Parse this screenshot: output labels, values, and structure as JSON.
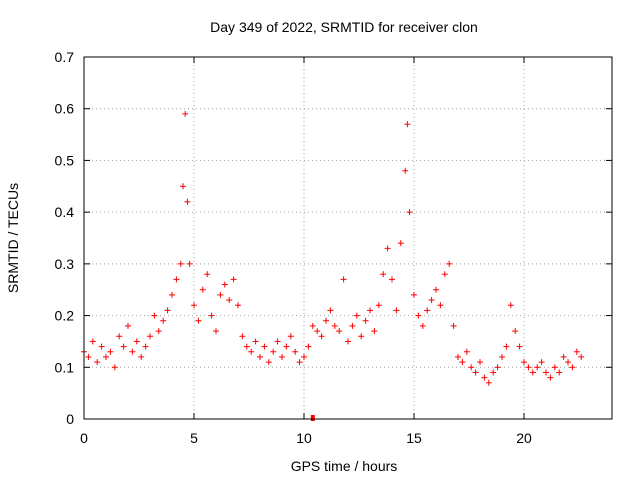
{
  "chart_data": {
    "type": "scatter",
    "title": "Day 349 of 2022, SRMTID for receiver clon",
    "xlabel": "GPS time / hours",
    "ylabel": "SRMTID / TECUs",
    "xlim": [
      0,
      24
    ],
    "ylim": [
      0,
      0.7
    ],
    "x_ticks": [
      0,
      5,
      10,
      15,
      20
    ],
    "x_tick_labels": [
      "0",
      "5",
      "10",
      "15",
      "20"
    ],
    "y_ticks": [
      0,
      0.1,
      0.2,
      0.3,
      0.4,
      0.5,
      0.6,
      0.7
    ],
    "y_tick_labels": [
      "0",
      "0.1",
      "0.2",
      "0.3",
      "0.4",
      "0.5",
      "0.6",
      "0.7"
    ],
    "grid": true,
    "marker": "plus",
    "color": "#ff0000",
    "series": [
      {
        "name": "SRMTID",
        "x": [
          0.0,
          0.2,
          0.4,
          0.6,
          0.8,
          1.0,
          1.2,
          1.4,
          1.6,
          1.8,
          2.0,
          2.2,
          2.4,
          2.6,
          2.8,
          3.0,
          3.2,
          3.4,
          3.6,
          3.8,
          4.0,
          4.2,
          4.4,
          4.5,
          4.6,
          4.7,
          4.8,
          5.0,
          5.2,
          5.4,
          5.6,
          5.8,
          6.0,
          6.2,
          6.4,
          6.6,
          6.8,
          7.0,
          7.2,
          7.4,
          7.6,
          7.8,
          8.0,
          8.2,
          8.4,
          8.6,
          8.8,
          9.0,
          9.2,
          9.4,
          9.6,
          9.8,
          10.0,
          10.2,
          10.4,
          10.6,
          10.8,
          11.0,
          11.2,
          11.4,
          11.6,
          11.8,
          12.0,
          12.2,
          12.4,
          12.6,
          12.8,
          13.0,
          13.2,
          13.4,
          13.6,
          13.8,
          14.0,
          14.2,
          14.4,
          14.6,
          14.7,
          14.8,
          15.0,
          15.2,
          15.4,
          15.6,
          15.8,
          16.0,
          16.2,
          16.4,
          16.6,
          16.8,
          17.0,
          17.2,
          17.4,
          17.6,
          17.8,
          18.0,
          18.2,
          18.4,
          18.6,
          18.8,
          19.0,
          19.2,
          19.4,
          19.6,
          19.8,
          20.0,
          20.2,
          20.4,
          20.6,
          20.8,
          21.0,
          21.2,
          21.4,
          21.6,
          21.8,
          22.0,
          22.2,
          22.4,
          22.6
        ],
        "y": [
          0.13,
          0.12,
          0.15,
          0.11,
          0.14,
          0.12,
          0.13,
          0.1,
          0.16,
          0.14,
          0.18,
          0.13,
          0.15,
          0.12,
          0.14,
          0.16,
          0.2,
          0.17,
          0.19,
          0.21,
          0.24,
          0.27,
          0.3,
          0.45,
          0.59,
          0.42,
          0.3,
          0.22,
          0.19,
          0.25,
          0.28,
          0.2,
          0.17,
          0.24,
          0.26,
          0.23,
          0.27,
          0.22,
          0.16,
          0.14,
          0.13,
          0.15,
          0.12,
          0.14,
          0.11,
          0.13,
          0.15,
          0.12,
          0.14,
          0.16,
          0.13,
          0.11,
          0.12,
          0.14,
          0.18,
          0.17,
          0.16,
          0.19,
          0.21,
          0.18,
          0.17,
          0.27,
          0.15,
          0.18,
          0.2,
          0.16,
          0.19,
          0.21,
          0.17,
          0.22,
          0.28,
          0.33,
          0.27,
          0.21,
          0.34,
          0.48,
          0.57,
          0.4,
          0.24,
          0.2,
          0.18,
          0.21,
          0.23,
          0.25,
          0.22,
          0.28,
          0.3,
          0.18,
          0.12,
          0.11,
          0.13,
          0.1,
          0.09,
          0.11,
          0.08,
          0.07,
          0.09,
          0.1,
          0.12,
          0.14,
          0.22,
          0.17,
          0.14,
          0.11,
          0.1,
          0.09,
          0.1,
          0.11,
          0.09,
          0.08,
          0.1,
          0.09,
          0.12,
          0.11,
          0.1,
          0.13,
          0.12
        ],
        "outlier_x": [
          10.4
        ],
        "outlier_y": [
          0.0
        ]
      }
    ]
  }
}
